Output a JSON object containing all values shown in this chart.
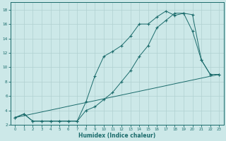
{
  "title": "",
  "xlabel": "Humidex (Indice chaleur)",
  "bg_color": "#cce8e8",
  "grid_color": "#b0d0d0",
  "line_color": "#1a6b6b",
  "xlim": [
    -0.5,
    23.5
  ],
  "ylim": [
    2,
    19
  ],
  "xticks": [
    0,
    1,
    2,
    3,
    4,
    5,
    6,
    7,
    8,
    9,
    10,
    11,
    12,
    13,
    14,
    15,
    16,
    17,
    18,
    19,
    20,
    21,
    22,
    23
  ],
  "yticks": [
    2,
    4,
    6,
    8,
    10,
    12,
    14,
    16,
    18
  ],
  "line1_x": [
    0,
    1,
    2,
    3,
    4,
    5,
    6,
    7,
    8,
    9,
    10,
    11,
    12,
    13,
    14,
    15,
    16,
    17,
    18,
    19,
    20,
    21,
    22,
    23
  ],
  "line1_y": [
    3.0,
    3.5,
    2.5,
    2.5,
    2.5,
    2.5,
    2.5,
    2.5,
    5.2,
    8.8,
    11.5,
    12.2,
    13.0,
    14.3,
    16.0,
    16.0,
    17.0,
    17.8,
    17.2,
    17.5,
    17.3,
    11.0,
    9.0,
    9.0
  ],
  "line2_x": [
    0,
    1,
    2,
    3,
    4,
    5,
    6,
    7,
    8,
    9,
    10,
    11,
    12,
    13,
    14,
    15,
    16,
    17,
    18,
    19,
    20,
    21,
    22,
    23
  ],
  "line2_y": [
    3.0,
    3.5,
    2.5,
    2.5,
    2.5,
    2.5,
    2.5,
    2.5,
    4.0,
    4.5,
    5.5,
    6.5,
    8.0,
    9.5,
    11.5,
    13.0,
    15.5,
    16.5,
    17.5,
    17.5,
    15.0,
    11.0,
    9.0,
    9.0
  ],
  "line3_x": [
    0,
    1,
    2,
    3,
    4,
    5,
    6,
    7,
    8,
    9,
    10,
    11,
    12,
    13,
    14,
    15,
    16,
    17,
    18,
    19,
    20,
    21,
    22,
    23
  ],
  "line3_y": [
    3.0,
    3.26,
    3.52,
    3.78,
    4.04,
    4.3,
    4.57,
    4.83,
    5.09,
    5.35,
    5.61,
    5.87,
    6.13,
    6.39,
    6.65,
    6.91,
    7.17,
    7.43,
    7.7,
    7.96,
    8.22,
    8.48,
    8.74,
    9.0
  ]
}
